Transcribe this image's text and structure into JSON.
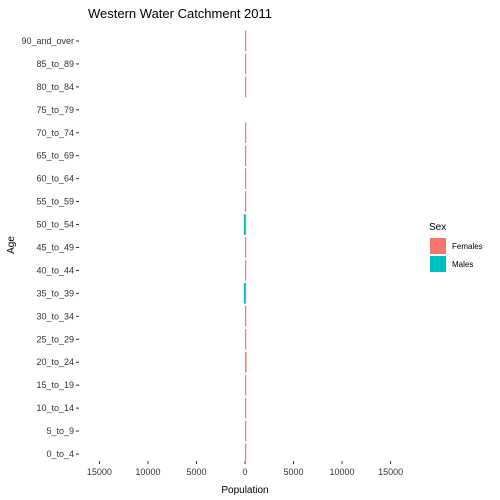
{
  "chart_data": {
    "type": "bar",
    "orientation": "horizontal",
    "style": "population-pyramid",
    "title": "Western Water Catchment  2011",
    "xlabel": "Population",
    "ylabel": "Age",
    "xlim": [
      -17000,
      17000
    ],
    "x_ticks": [
      -15000,
      -10000,
      -5000,
      0,
      5000,
      10000,
      15000
    ],
    "x_tick_labels": [
      "15000",
      "10000",
      "5000",
      "0",
      "5000",
      "10000",
      "15000"
    ],
    "categories": [
      "0_to_4",
      "5_to_9",
      "10_to_14",
      "15_to_19",
      "20_to_24",
      "25_to_29",
      "30_to_34",
      "35_to_39",
      "40_to_44",
      "45_to_49",
      "50_to_54",
      "55_to_59",
      "60_to_64",
      "65_to_69",
      "70_to_74",
      "75_to_79",
      "80_to_84",
      "85_to_89",
      "90_and_over"
    ],
    "series": [
      {
        "name": "Females",
        "color": "#F8766D",
        "values": [
          80,
          70,
          60,
          70,
          150,
          60,
          70,
          60,
          60,
          60,
          60,
          60,
          60,
          60,
          60,
          0,
          60,
          60,
          60
        ]
      },
      {
        "name": "Males",
        "color": "#00BFC4",
        "values": [
          0,
          0,
          0,
          0,
          0,
          0,
          0,
          60,
          0,
          0,
          60,
          0,
          0,
          0,
          0,
          0,
          0,
          0,
          0
        ]
      }
    ],
    "legend": {
      "title": "Sex",
      "position": "right"
    },
    "grid": false
  }
}
